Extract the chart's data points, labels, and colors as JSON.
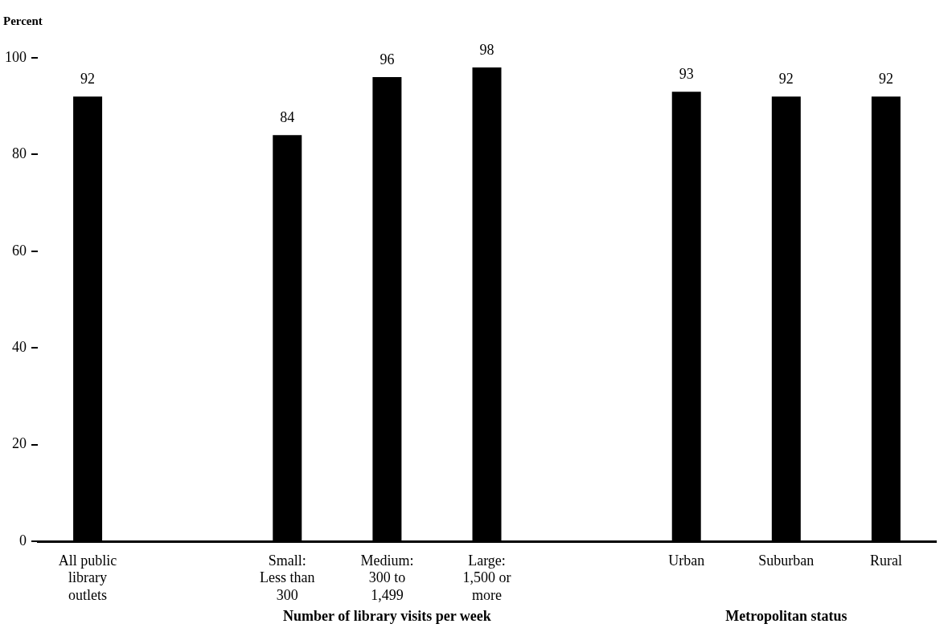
{
  "chart_data": {
    "type": "bar",
    "ylabel": "Percent",
    "categories": [
      "All public library outlets",
      null,
      "Small: Less than 300",
      "Medium: 300 to 1,499",
      "Large: 1,500 or more",
      null,
      "Urban",
      "Suburban",
      "Rural"
    ],
    "values": [
      92,
      null,
      84,
      96,
      98,
      null,
      93,
      92,
      92
    ],
    "color": "#000000",
    "ylim": [
      0,
      100
    ],
    "yticks": [
      0,
      20,
      40,
      60,
      80,
      100
    ],
    "grid": false,
    "legend": false,
    "data_labels": true,
    "annotations": [
      "Number of library visits per week",
      "Metropolitan status"
    ]
  }
}
